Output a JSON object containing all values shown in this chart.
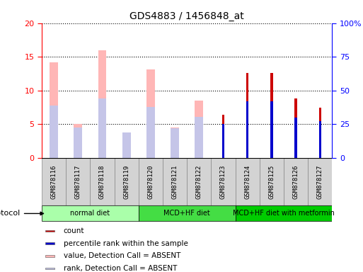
{
  "title": "GDS4883 / 1456848_at",
  "samples": [
    "GSM878116",
    "GSM878117",
    "GSM878118",
    "GSM878119",
    "GSM878120",
    "GSM878121",
    "GSM878122",
    "GSM878123",
    "GSM878124",
    "GSM878125",
    "GSM878126",
    "GSM878127"
  ],
  "value_absent": [
    14.2,
    5.0,
    16.0,
    3.7,
    13.1,
    4.5,
    8.5,
    null,
    null,
    null,
    null,
    null
  ],
  "rank_absent_pct": [
    39,
    22.5,
    44,
    19,
    37.5,
    22,
    30.5,
    null,
    null,
    null,
    null,
    null
  ],
  "count": [
    null,
    null,
    null,
    null,
    null,
    null,
    null,
    6.4,
    12.6,
    12.6,
    8.8,
    7.4
  ],
  "percentile": [
    null,
    null,
    null,
    null,
    null,
    null,
    null,
    25,
    42,
    42,
    30,
    27
  ],
  "ylim_left": [
    0,
    20
  ],
  "ylim_right": [
    0,
    100
  ],
  "yticks_left": [
    0,
    5,
    10,
    15,
    20
  ],
  "yticks_right": [
    0,
    25,
    50,
    75,
    100
  ],
  "ytick_labels_right": [
    "0",
    "25",
    "50",
    "75",
    "100%"
  ],
  "color_value_absent": "#ffb6b6",
  "color_rank_absent": "#c5c5e8",
  "color_count": "#cc0000",
  "color_percentile": "#0000cc",
  "groups": [
    {
      "label": "normal diet",
      "start": 0,
      "end": 3,
      "color": "#aaffaa"
    },
    {
      "label": "MCD+HF diet",
      "start": 4,
      "end": 7,
      "color": "#44dd44"
    },
    {
      "label": "MCD+HF diet with metformin",
      "start": 8,
      "end": 11,
      "color": "#00cc00"
    }
  ],
  "bg_color": "#d3d3d3",
  "protocol_label": "protocol"
}
